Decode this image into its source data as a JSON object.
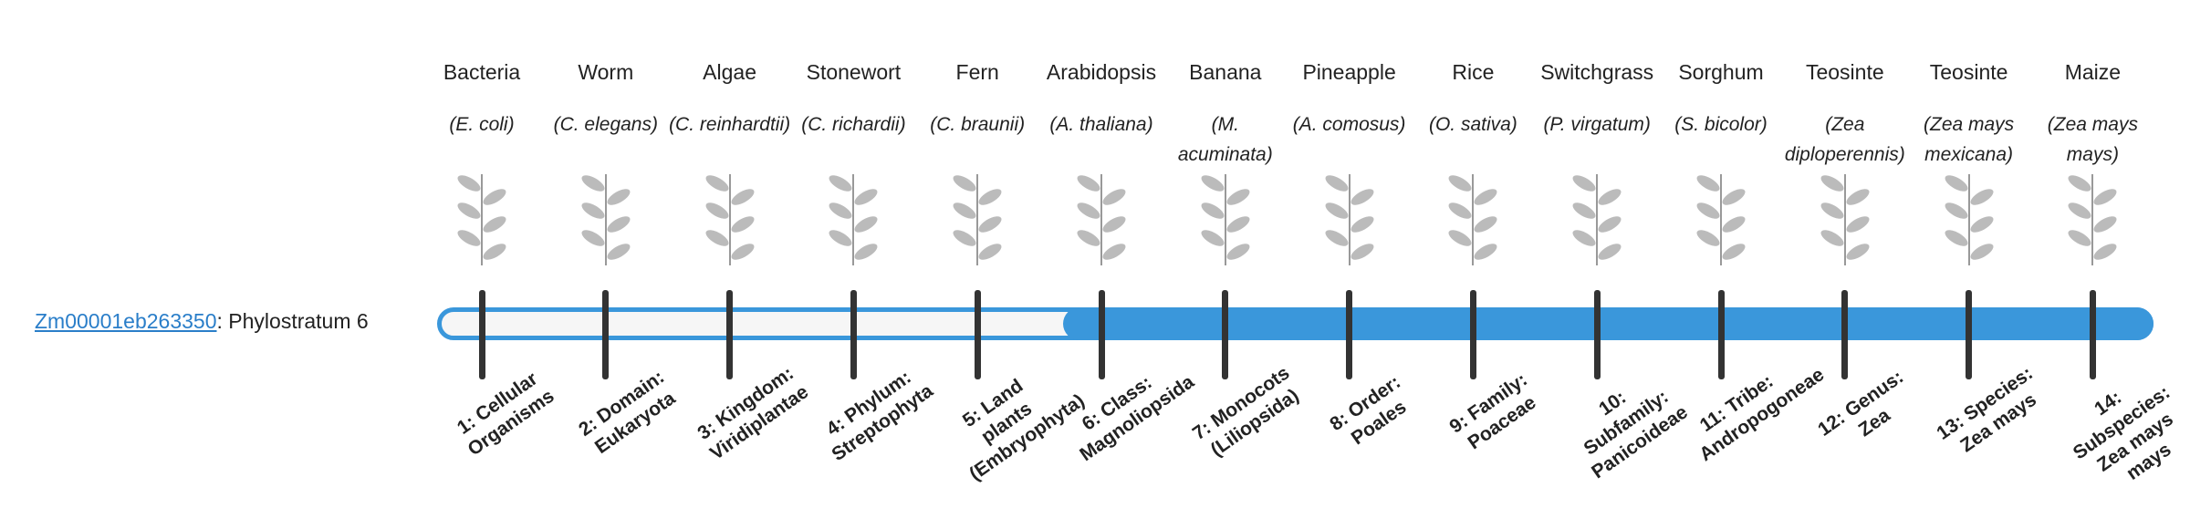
{
  "gene": {
    "id": "Zm00001eb263350",
    "stratum_text": ": Phylostratum",
    "stratum": 6
  },
  "organisms": [
    {
      "name": "Bacteria",
      "species": "(E. coli)",
      "stratum": "1: Cellular Organisms"
    },
    {
      "name": "Worm",
      "species": "(C. elegans)",
      "stratum": "2: Domain: Eukaryota"
    },
    {
      "name": "Algae",
      "species": "(C. reinhardtii)",
      "stratum": "3: Kingdom: Viridiplantae"
    },
    {
      "name": "Stonewort",
      "species": "(C. richardii)",
      "stratum": "4: Phylum: Streptophyta"
    },
    {
      "name": "Fern",
      "species": "(C. braunii)",
      "stratum": "5: Land plants (Embryophyta)"
    },
    {
      "name": "Arabidopsis",
      "species": "(A. thaliana)",
      "stratum": "6: Class: Magnoliopsida"
    },
    {
      "name": "Banana",
      "species": "(M. acuminata)",
      "stratum": "7: Monocots (Liliopsida)"
    },
    {
      "name": "Pineapple",
      "species": "(A. comosus)",
      "stratum": "8: Order: Poales"
    },
    {
      "name": "Rice",
      "species": "(O. sativa)",
      "stratum": "9: Family: Poaceae"
    },
    {
      "name": "Switchgrass",
      "species": "(P. virgatum)",
      "stratum": "10: Subfamily: Panicoideae"
    },
    {
      "name": "Sorghum",
      "species": "(S. bicolor)",
      "stratum": "11: Tribe: Andropogoneae"
    },
    {
      "name": "Teosinte",
      "species": "(Zea diploperennis)",
      "stratum": "12: Genus: Zea"
    },
    {
      "name": "Teosinte",
      "species": "(Zea mays mexicana)",
      "stratum": "13: Species: Zea mays"
    },
    {
      "name": "Maize",
      "species": "(Zea mays mays)",
      "stratum": "14: Subspecies: Zea mays mays"
    }
  ]
}
